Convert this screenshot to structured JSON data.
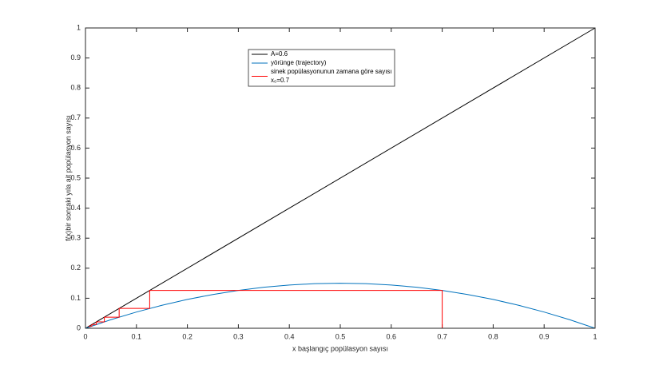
{
  "chart_data": {
    "type": "line",
    "xlabel": "x başlangıç popülasyon sayısı",
    "ylabel": "f(x)bir sonraki yıla ait popülasyon sayısı",
    "xlim": [
      0,
      1
    ],
    "ylim": [
      0,
      1
    ],
    "xticks": [
      0,
      0.1,
      0.2,
      0.3,
      0.4,
      0.5,
      0.6,
      0.7,
      0.8,
      0.9,
      1
    ],
    "yticks": [
      0,
      0.1,
      0.2,
      0.3,
      0.4,
      0.5,
      0.6,
      0.7,
      0.8,
      0.9,
      1
    ],
    "legend": "top",
    "series": [
      {
        "name": [
          "A=0.6"
        ],
        "color": "#000000",
        "x": [
          0,
          1
        ],
        "values": [
          0,
          1
        ]
      },
      {
        "name": [
          "yörünge (trajectory)"
        ],
        "color": "#0072bd",
        "x": [
          0,
          0.05,
          0.1,
          0.15,
          0.2,
          0.25,
          0.3,
          0.35,
          0.4,
          0.45,
          0.5,
          0.55,
          0.6,
          0.65,
          0.7,
          0.75,
          0.8,
          0.85,
          0.9,
          0.95,
          1
        ],
        "values": [
          0,
          0.0285,
          0.054,
          0.0765,
          0.096,
          0.1125,
          0.126,
          0.1365,
          0.144,
          0.1485,
          0.15,
          0.1485,
          0.144,
          0.1365,
          0.126,
          0.1125,
          0.096,
          0.0765,
          0.054,
          0.0285,
          0
        ]
      },
      {
        "name": [
          "sinek popülasyonunun zamana göre sayısı",
          "x₀=0.7"
        ],
        "color": "#ff0000",
        "x": [
          0.7,
          0.7,
          0.126,
          0.126,
          0.0661,
          0.0661,
          0.037,
          0.037,
          0.0214,
          0.0214,
          0.0126,
          0.0126,
          0.0074,
          0.0074
        ],
        "values": [
          0,
          0.126,
          0.126,
          0.0661,
          0.0661,
          0.037,
          0.037,
          0.0214,
          0.0214,
          0.0126,
          0.0126,
          0.0074,
          0.0074,
          0.0044
        ]
      }
    ]
  }
}
